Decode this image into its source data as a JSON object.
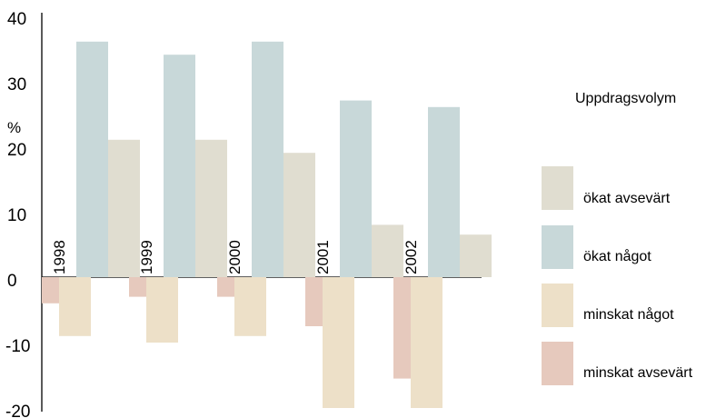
{
  "chart_data": {
    "type": "bar",
    "categories": [
      "1998",
      "1999",
      "2000",
      "2001",
      "2002"
    ],
    "series": [
      {
        "name": "ökat avsevärt",
        "values": [
          21,
          21,
          19,
          8,
          6.5
        ]
      },
      {
        "name": "ökat något",
        "values": [
          36,
          34,
          36,
          27,
          26
        ]
      },
      {
        "name": "minskat något",
        "values": [
          -9,
          -10,
          -9,
          -20,
          -20
        ]
      },
      {
        "name": "minskat avsevärt",
        "values": [
          -4,
          -3,
          -3,
          -7.5,
          -15.5
        ]
      }
    ],
    "title": "Uppdragsvolym",
    "ylabel": "%",
    "ylim": [
      -20,
      40
    ],
    "yticks": [
      "40",
      "30",
      "20",
      "10",
      "0",
      "-10",
      "-20"
    ],
    "legend_position": "right",
    "colors": {
      "okat_avsevart": "#e0ddd0",
      "okat_nagot": "#c8d8d9",
      "minskat_nagot": "#ede0c8",
      "minskat_avsevart": "#e6c9bd"
    }
  }
}
